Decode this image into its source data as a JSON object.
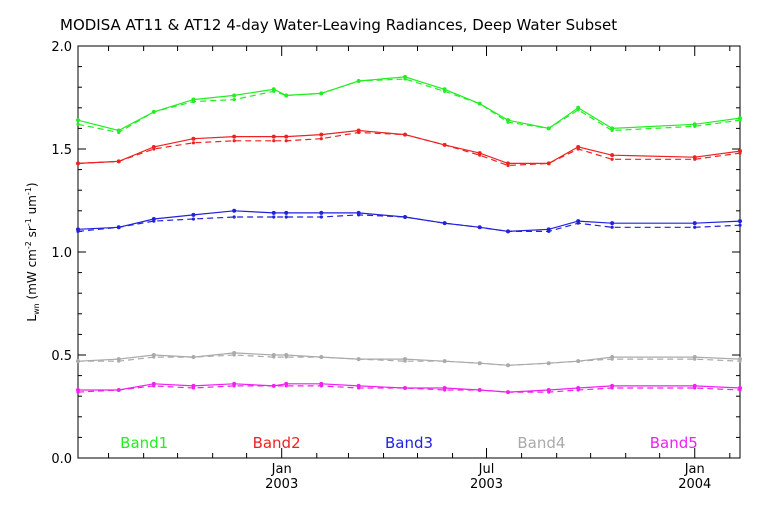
{
  "chart_data": {
    "type": "line",
    "title": "MODISA AT11 & AT12 4-day Water-Leaving Radiances, Deep Water Subset",
    "ylabel": {
      "main": "L",
      "sub": "wn",
      "rest": " (mW cm",
      "exp1": "-2",
      "mid": " sr",
      "exp2": "-1",
      "mid2": " um",
      "exp3": "-1",
      "end": ")"
    },
    "ylim": [
      0.0,
      2.0
    ],
    "yticks": [
      0.0,
      0.5,
      1.0,
      1.5,
      2.0
    ],
    "ytick_labels": [
      "0.0",
      "0.5",
      "1.0",
      "1.5",
      "2.0"
    ],
    "xlim": [
      "2002-07-05",
      "2004-02-10"
    ],
    "xtick_labels": [
      {
        "date": "2003-01-01",
        "month": "Jan",
        "year": "2003"
      },
      {
        "date": "2003-07-01",
        "month": "Jul",
        "year": "2003"
      },
      {
        "date": "2004-01-01",
        "month": "Jan",
        "year": "2004"
      }
    ],
    "minor_ticks": [
      "2002-08-01",
      "2002-09-01",
      "2002-10-01",
      "2002-11-01",
      "2002-12-01",
      "2003-02-01",
      "2003-03-01",
      "2003-04-01",
      "2003-05-01",
      "2003-06-01",
      "2003-08-01",
      "2003-09-01",
      "2003-10-01",
      "2003-11-01",
      "2003-12-01",
      "2004-02-01"
    ],
    "x": [
      "2002-07-05",
      "2002-08-10",
      "2002-09-10",
      "2002-10-15",
      "2002-11-20",
      "2002-12-25",
      "2003-01-05",
      "2003-02-05",
      "2003-03-10",
      "2003-04-20",
      "2003-05-25",
      "2003-06-25",
      "2003-07-20",
      "2003-08-25",
      "2003-09-20",
      "2003-10-20",
      "2004-01-01",
      "2004-02-10"
    ],
    "series": [
      {
        "name": "Band1",
        "color": "#22ee22",
        "solid": [
          1.64,
          1.59,
          1.68,
          1.74,
          1.76,
          1.79,
          1.76,
          1.77,
          1.83,
          1.85,
          1.79,
          1.72,
          1.64,
          1.6,
          1.7,
          1.6,
          1.62,
          1.65
        ],
        "dashed": [
          1.62,
          1.58,
          1.68,
          1.73,
          1.74,
          1.78,
          1.76,
          1.77,
          1.83,
          1.84,
          1.78,
          1.72,
          1.63,
          1.6,
          1.69,
          1.59,
          1.61,
          1.64
        ]
      },
      {
        "name": "Band2",
        "color": "#ee2222",
        "solid": [
          1.43,
          1.44,
          1.51,
          1.55,
          1.56,
          1.56,
          1.56,
          1.57,
          1.59,
          1.57,
          1.52,
          1.48,
          1.43,
          1.43,
          1.51,
          1.47,
          1.46,
          1.49
        ],
        "dashed": [
          1.43,
          1.44,
          1.5,
          1.53,
          1.54,
          1.54,
          1.54,
          1.55,
          1.58,
          1.57,
          1.52,
          1.47,
          1.42,
          1.43,
          1.5,
          1.45,
          1.45,
          1.48
        ]
      },
      {
        "name": "Band3",
        "color": "#2222dd",
        "solid": [
          1.11,
          1.12,
          1.16,
          1.18,
          1.2,
          1.19,
          1.19,
          1.19,
          1.19,
          1.17,
          1.14,
          1.12,
          1.1,
          1.11,
          1.15,
          1.14,
          1.14,
          1.15
        ],
        "dashed": [
          1.1,
          1.12,
          1.15,
          1.16,
          1.17,
          1.17,
          1.17,
          1.17,
          1.18,
          1.17,
          1.14,
          1.12,
          1.1,
          1.1,
          1.14,
          1.12,
          1.12,
          1.13
        ]
      },
      {
        "name": "Band4",
        "color": "#aaaaaa",
        "solid": [
          0.47,
          0.48,
          0.5,
          0.49,
          0.51,
          0.5,
          0.5,
          0.49,
          0.48,
          0.48,
          0.47,
          0.46,
          0.45,
          0.46,
          0.47,
          0.49,
          0.49,
          0.48
        ],
        "dashed": [
          0.47,
          0.47,
          0.49,
          0.49,
          0.5,
          0.49,
          0.49,
          0.49,
          0.48,
          0.47,
          0.47,
          0.46,
          0.45,
          0.46,
          0.47,
          0.48,
          0.48,
          0.47
        ]
      },
      {
        "name": "Band5",
        "color": "#ee22ee",
        "solid": [
          0.33,
          0.33,
          0.36,
          0.35,
          0.36,
          0.35,
          0.36,
          0.36,
          0.35,
          0.34,
          0.34,
          0.33,
          0.32,
          0.33,
          0.34,
          0.35,
          0.35,
          0.34
        ],
        "dashed": [
          0.32,
          0.33,
          0.35,
          0.34,
          0.35,
          0.35,
          0.35,
          0.35,
          0.34,
          0.34,
          0.33,
          0.33,
          0.32,
          0.32,
          0.33,
          0.34,
          0.34,
          0.33
        ]
      }
    ],
    "legend_position": "bottom",
    "grid": false
  }
}
